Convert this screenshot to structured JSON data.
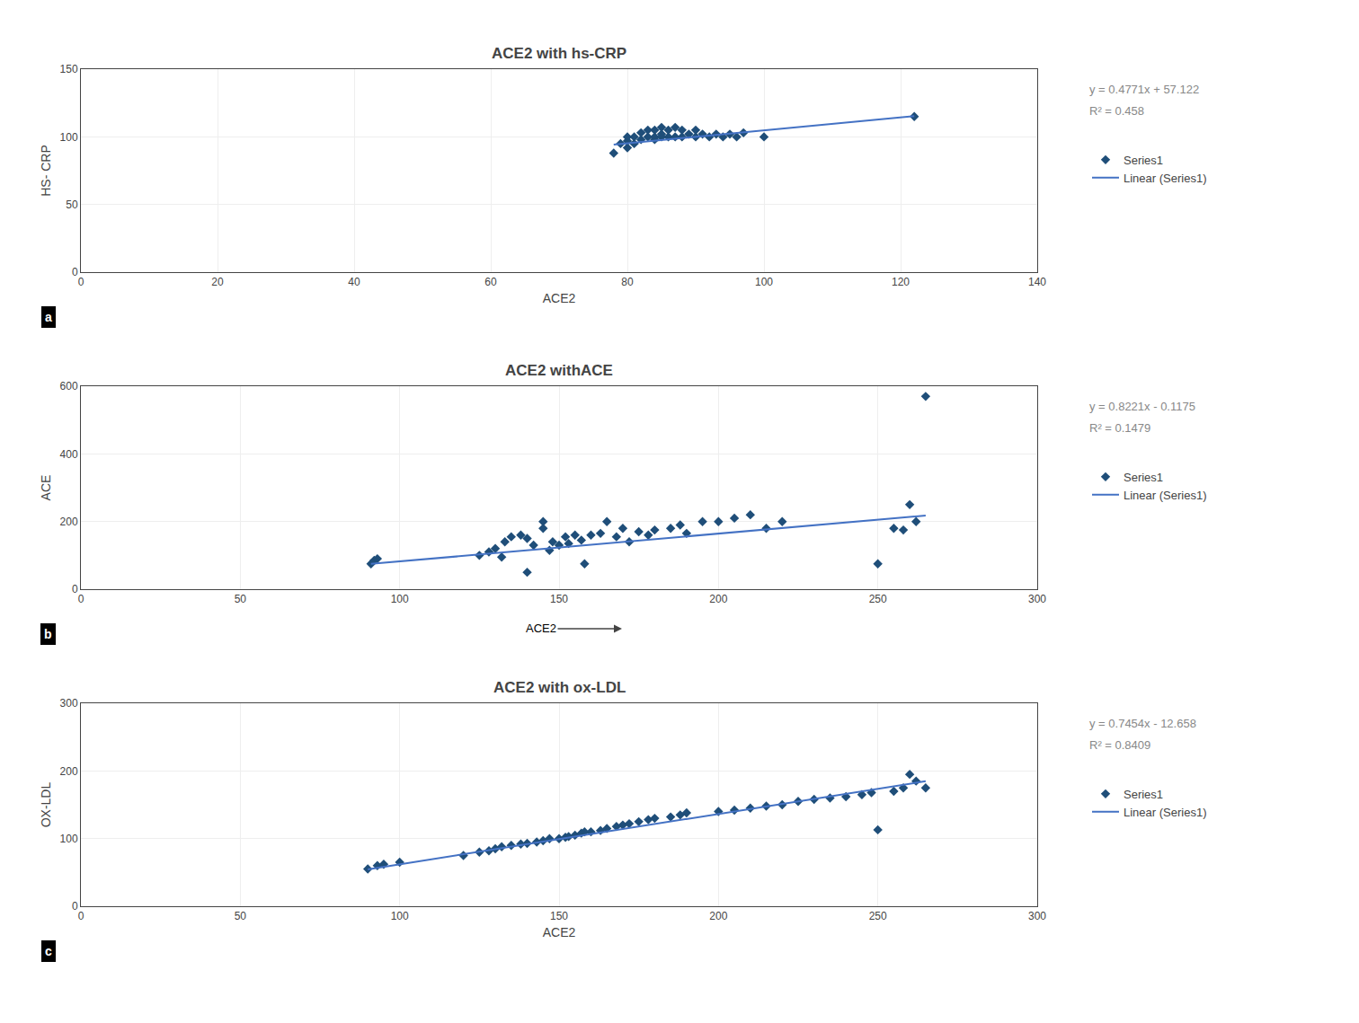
{
  "chart_data": [
    {
      "type": "scatter",
      "title": "ACE2 with hs-CRP",
      "xlabel": "ACE2",
      "ylabel": "HS- CRP",
      "xlim": [
        0,
        140
      ],
      "ylim": [
        0,
        150
      ],
      "xticks": [
        0,
        20,
        40,
        60,
        80,
        100,
        120,
        140
      ],
      "yticks": [
        0,
        50,
        100,
        150
      ],
      "grid": true,
      "legend": "right",
      "panel_label": "a",
      "equation": "y = 0.4771x + 57.122",
      "r2": "R² = 0.458",
      "series": [
        {
          "name": "Series1",
          "type": "scatter",
          "marker": "diamond",
          "color": "#1f4e79",
          "x": [
            78,
            79,
            80,
            80,
            80,
            81,
            81,
            82,
            82,
            83,
            83,
            84,
            84,
            84,
            85,
            85,
            85,
            86,
            86,
            87,
            87,
            88,
            88,
            89,
            90,
            90,
            91,
            92,
            93,
            94,
            95,
            96,
            97,
            100,
            122
          ],
          "values": [
            88,
            95,
            92,
            97,
            100,
            95,
            100,
            98,
            103,
            100,
            105,
            98,
            100,
            105,
            100,
            102,
            107,
            100,
            105,
            100,
            107,
            100,
            105,
            102,
            100,
            105,
            102,
            100,
            102,
            100,
            102,
            100,
            103,
            100,
            115
          ]
        },
        {
          "name": "Linear (Series1)",
          "type": "line",
          "color": "#4472c4",
          "x": [
            78,
            122
          ],
          "values": [
            94.3358,
            115.3282
          ]
        }
      ]
    },
    {
      "type": "scatter",
      "title": "ACE2 withACE",
      "ylabel": "ACE",
      "xlim": [
        0,
        300
      ],
      "ylim": [
        0,
        600
      ],
      "xticks": [
        0,
        50,
        100,
        150,
        200,
        250,
        300
      ],
      "yticks": [
        0,
        200,
        400,
        600
      ],
      "grid": true,
      "legend": "right",
      "panel_label": "b",
      "equation": "y = 0.8221x - 0.1175",
      "r2": "R² = 0.1479",
      "annotations": [
        "ACE2"
      ],
      "series": [
        {
          "name": "Series1",
          "type": "scatter",
          "marker": "diamond",
          "color": "#1f4e79",
          "x": [
            91,
            92,
            93,
            125,
            128,
            130,
            132,
            133,
            135,
            138,
            140,
            140,
            142,
            145,
            145,
            147,
            148,
            150,
            152,
            153,
            155,
            157,
            158,
            160,
            163,
            165,
            168,
            170,
            172,
            175,
            178,
            180,
            185,
            188,
            190,
            195,
            200,
            205,
            210,
            215,
            220,
            250,
            255,
            258,
            260,
            262,
            265
          ],
          "values": [
            75,
            85,
            90,
            100,
            110,
            120,
            95,
            140,
            155,
            160,
            50,
            150,
            130,
            180,
            200,
            115,
            140,
            130,
            155,
            135,
            160,
            145,
            75,
            160,
            165,
            200,
            155,
            180,
            140,
            170,
            160,
            175,
            180,
            190,
            165,
            200,
            200,
            210,
            220,
            180,
            200,
            75,
            180,
            175,
            250,
            200,
            570
          ]
        },
        {
          "name": "Linear (Series1)",
          "type": "line",
          "color": "#4472c4",
          "x": [
            91,
            265
          ],
          "values": [
            74.6936,
            217.739
          ]
        }
      ]
    },
    {
      "type": "scatter",
      "title": "ACE2 with ox-LDL",
      "xlabel": "ACE2",
      "ylabel": "OX-LDL",
      "xlim": [
        0,
        300
      ],
      "ylim": [
        0,
        300
      ],
      "xticks": [
        0,
        50,
        100,
        150,
        200,
        250,
        300
      ],
      "yticks": [
        0,
        100,
        200,
        300
      ],
      "grid": true,
      "legend": "right",
      "panel_label": "c",
      "equation": "y = 0.7454x - 12.658",
      "r2": "R² = 0.8409",
      "series": [
        {
          "name": "Series1",
          "type": "scatter",
          "marker": "diamond",
          "color": "#1f4e79",
          "x": [
            90,
            93,
            95,
            100,
            120,
            125,
            128,
            130,
            132,
            135,
            138,
            140,
            143,
            145,
            147,
            150,
            152,
            153,
            155,
            157,
            158,
            160,
            163,
            165,
            168,
            170,
            172,
            175,
            178,
            180,
            185,
            188,
            190,
            200,
            205,
            210,
            215,
            220,
            225,
            230,
            235,
            240,
            245,
            248,
            250,
            255,
            258,
            260,
            262,
            265
          ],
          "values": [
            55,
            60,
            62,
            65,
            75,
            80,
            82,
            85,
            88,
            90,
            92,
            93,
            95,
            97,
            100,
            100,
            102,
            103,
            105,
            108,
            110,
            110,
            112,
            115,
            118,
            120,
            122,
            125,
            128,
            130,
            132,
            135,
            138,
            140,
            142,
            145,
            148,
            150,
            155,
            158,
            160,
            162,
            165,
            168,
            113,
            170,
            175,
            195,
            185,
            175
          ]
        },
        {
          "name": "Linear (Series1)",
          "type": "line",
          "color": "#4472c4",
          "x": [
            90,
            265
          ],
          "values": [
            54.428,
            184.873
          ]
        }
      ]
    }
  ]
}
